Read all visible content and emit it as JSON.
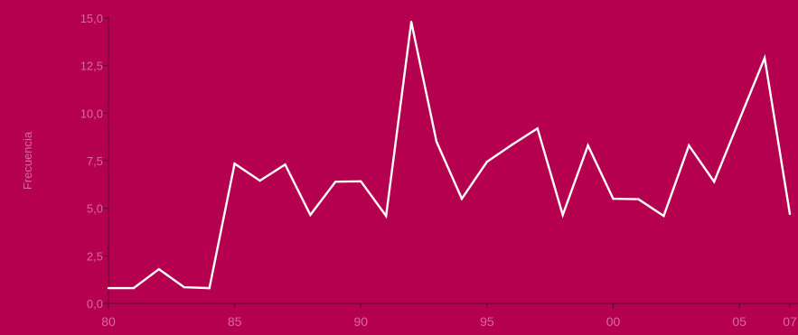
{
  "chart_data": {
    "type": "line",
    "title": "",
    "xlabel": "",
    "ylabel": "Frecuencia",
    "ylim": [
      0,
      15
    ],
    "xlim": [
      1980,
      2007
    ],
    "grid": false,
    "x_ticks": [
      {
        "value": 1980,
        "label": "80"
      },
      {
        "value": 1985,
        "label": "85"
      },
      {
        "value": 1990,
        "label": "90"
      },
      {
        "value": 1995,
        "label": "95"
      },
      {
        "value": 2000,
        "label": "00"
      },
      {
        "value": 2005,
        "label": "05"
      },
      {
        "value": 2007,
        "label": "07"
      }
    ],
    "y_ticks": [
      {
        "value": 0,
        "label": "0,0"
      },
      {
        "value": 2.5,
        "label": "2,5"
      },
      {
        "value": 5,
        "label": "5,0"
      },
      {
        "value": 7.5,
        "label": "7,5"
      },
      {
        "value": 10,
        "label": "10,0"
      },
      {
        "value": 12.5,
        "label": "12,5"
      },
      {
        "value": 15,
        "label": "15,0"
      }
    ],
    "series": [
      {
        "x": [
          1980,
          1981,
          1982,
          1983,
          1984,
          1985,
          1986,
          1987,
          1988,
          1989,
          1990,
          1991,
          1992,
          1993,
          1994,
          1995,
          1996,
          1997,
          1998,
          1999,
          2000,
          2001,
          2002,
          2003,
          2004,
          2005,
          2006,
          2007
        ],
        "values": [
          0.8,
          0.8,
          1.8,
          0.85,
          0.8,
          7.35,
          6.45,
          7.3,
          4.65,
          6.4,
          6.42,
          4.6,
          14.8,
          8.5,
          5.5,
          7.45,
          8.35,
          9.2,
          4.65,
          8.3,
          5.5,
          5.48,
          4.6,
          8.3,
          6.4,
          9.65,
          12.9,
          4.7
        ]
      }
    ],
    "colors": {
      "background": "#b5004f",
      "line": "#ffffff",
      "axis": "#5a0a2a",
      "tick_label": "#d86a9e"
    }
  }
}
